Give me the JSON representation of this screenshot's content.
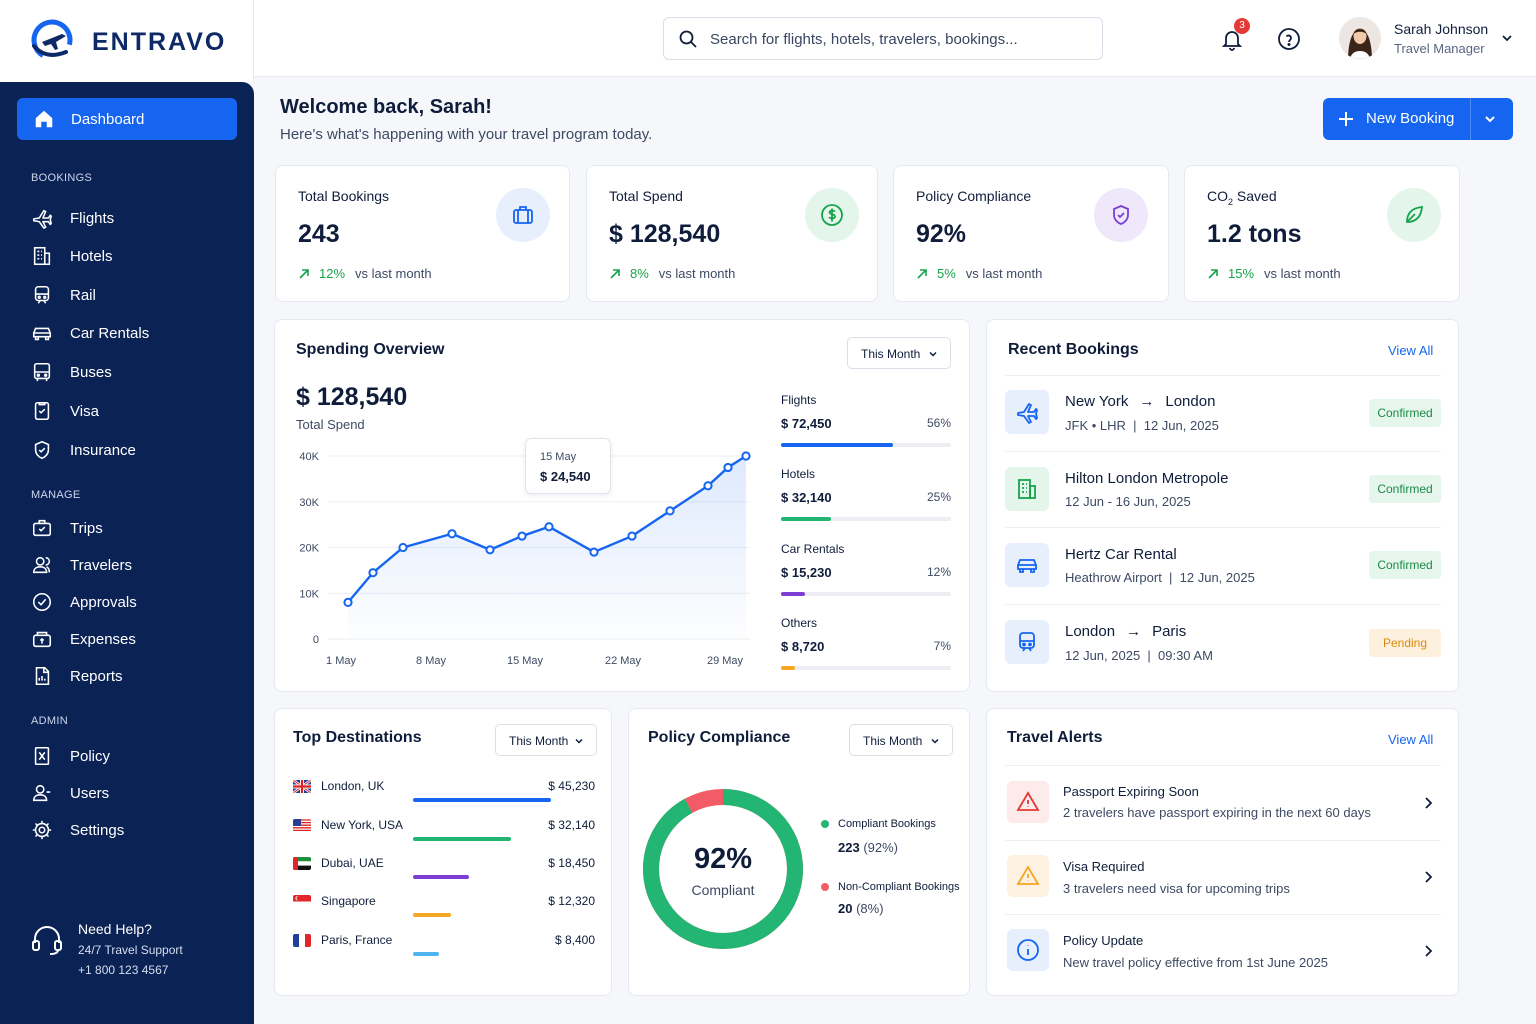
{
  "brand": {
    "name": "ENTRAVO"
  },
  "colors": {
    "primary": "#1565f0",
    "sidebar": "#0b2255",
    "success": "#17a34a",
    "warning": "#f5a623",
    "danger": "#e53935",
    "purple": "#7b3fd4"
  },
  "sidebar": {
    "active": {
      "label": "Dashboard",
      "icon": "home-icon"
    },
    "sections": [
      {
        "label": "BOOKINGS",
        "items": [
          {
            "label": "Flights",
            "icon": "plane-icon"
          },
          {
            "label": "Hotels",
            "icon": "building-icon"
          },
          {
            "label": "Rail",
            "icon": "train-icon"
          },
          {
            "label": "Car Rentals",
            "icon": "car-icon"
          },
          {
            "label": "Buses",
            "icon": "bus-icon"
          },
          {
            "label": "Visa",
            "icon": "visa-icon"
          },
          {
            "label": "Insurance",
            "icon": "shield-icon"
          }
        ]
      },
      {
        "label": "MANAGE",
        "items": [
          {
            "label": "Trips",
            "icon": "briefcase-icon"
          },
          {
            "label": "Travelers",
            "icon": "users-icon"
          },
          {
            "label": "Approvals",
            "icon": "check-circle-icon"
          },
          {
            "label": "Expenses",
            "icon": "wallet-icon"
          },
          {
            "label": "Reports",
            "icon": "report-icon"
          }
        ]
      },
      {
        "label": "ADMIN",
        "items": [
          {
            "label": "Policy",
            "icon": "policy-icon"
          },
          {
            "label": "Users",
            "icon": "user-icon"
          },
          {
            "label": "Settings",
            "icon": "gear-icon"
          }
        ]
      }
    ],
    "help": {
      "title": "Need Help?",
      "subtitle": "24/7 Travel Support",
      "phone": "+1 800 123 4567"
    }
  },
  "topbar": {
    "search_placeholder": "Search for flights, hotels, travelers, bookings...",
    "notifications": "3",
    "user": {
      "name": "Sarah Johnson",
      "role": "Travel Manager"
    }
  },
  "header": {
    "welcome": "Welcome back, Sarah!",
    "subtitle": "Here's what's happening with your travel program today.",
    "new_booking": "New Booking"
  },
  "stats": [
    {
      "label": "Total Bookings",
      "value": "243",
      "change": "12%",
      "vs": "vs last month",
      "icon": "suitcase-icon"
    },
    {
      "label": "Total Spend",
      "value": "$ 128,540",
      "change": "8%",
      "vs": "vs last month",
      "icon": "dollar-icon"
    },
    {
      "label": "Policy Compliance",
      "value": "92%",
      "change": "5%",
      "vs": "vs last month",
      "icon": "shield-check-icon"
    },
    {
      "label_main": "CO",
      "label_sub": "2",
      "label_rest": " Saved",
      "value": "1.2 tons",
      "change": "15%",
      "vs": "vs last month",
      "icon": "leaf-icon"
    }
  ],
  "spending": {
    "title": "Spending Overview",
    "period": "This Month",
    "total": "$ 128,540",
    "total_label": "Total Spend",
    "tooltip": {
      "date": "15 May",
      "value": "$ 24,540"
    },
    "breakdown": [
      {
        "label": "Flights",
        "value": "$ 72,450",
        "pct": "56%",
        "fraction": 0.56,
        "color": "#1565f0"
      },
      {
        "label": "Hotels",
        "value": "$ 32,140",
        "pct": "25%",
        "fraction": 0.25,
        "color": "#22b573"
      },
      {
        "label": "Car Rentals",
        "value": "$ 15,230",
        "pct": "12%",
        "fraction": 0.12,
        "color": "#7b3fd4"
      },
      {
        "label": "Others",
        "value": "$ 8,720",
        "pct": "7%",
        "fraction": 0.07,
        "color": "#f5a623"
      }
    ]
  },
  "chart_data": {
    "type": "line",
    "x": [
      "1 May",
      "2 May",
      "4 May",
      "8 May",
      "11 May",
      "13 May",
      "15 May",
      "17 May",
      "20 May",
      "23 May",
      "25 May",
      "28 May",
      "30 May"
    ],
    "series": [
      {
        "values": [
          8000,
          14500,
          20000,
          23000,
          19500,
          22500,
          24540,
          19000,
          22500,
          28000,
          33500,
          37500,
          40000
        ]
      }
    ],
    "xticks": [
      "1 May",
      "8 May",
      "15 May",
      "22 May",
      "29 May"
    ],
    "yticks": [
      "0",
      "10K",
      "20K",
      "30K",
      "40K"
    ],
    "ylim": [
      0,
      40000
    ],
    "grid": true
  },
  "recent": {
    "title": "Recent Bookings",
    "view_all": "View All",
    "items": [
      {
        "from": "New York",
        "to": "London",
        "arrow": "→",
        "sub": "JFK • LHR  |  12 Jun, 2025",
        "status": "Confirmed",
        "icon": "plane-icon"
      },
      {
        "title": "Hilton London Metropole",
        "sub": "12 Jun - 16 Jun, 2025",
        "status": "Confirmed",
        "icon": "building-icon"
      },
      {
        "title": "Hertz Car Rental",
        "sub": "Heathrow Airport  |  12 Jun, 2025",
        "status": "Confirmed",
        "icon": "car-icon"
      },
      {
        "from": "London",
        "to": "Paris",
        "arrow": "→",
        "sub": "12 Jun, 2025  |  09:30 AM",
        "status": "Pending",
        "icon": "train-icon"
      }
    ]
  },
  "destinations": {
    "title": "Top Destinations",
    "period": "This Month",
    "items": [
      {
        "name": "London, UK",
        "value": "$ 45,230",
        "amount": 45230,
        "color": "#1565f0",
        "flag": "uk-flag-icon"
      },
      {
        "name": "New York, USA",
        "value": "$ 32,140",
        "amount": 32140,
        "color": "#22b573",
        "flag": "us-flag-icon"
      },
      {
        "name": "Dubai, UAE",
        "value": "$ 18,450",
        "amount": 18450,
        "color": "#7b3fd4",
        "flag": "uae-flag-icon"
      },
      {
        "name": "Singapore",
        "value": "$ 12,320",
        "amount": 12320,
        "color": "#f5a623",
        "flag": "sg-flag-icon"
      },
      {
        "name": "Paris, France",
        "value": "$ 8,400",
        "amount": 8400,
        "color": "#4fb3f0",
        "flag": "fr-flag-icon"
      }
    ]
  },
  "compliance": {
    "title": "Policy Compliance",
    "period": "This Month",
    "percent": "92%",
    "caption": "Compliant",
    "fraction": 0.92,
    "legend": [
      {
        "label": "Compliant Bookings",
        "count": "223",
        "pct": "(92%)",
        "color": "#22b573"
      },
      {
        "label": "Non-Compliant Bookings",
        "count": "20",
        "pct": "(8%)",
        "color": "#f25c66"
      }
    ]
  },
  "alerts": {
    "title": "Travel Alerts",
    "view_all": "View All",
    "items": [
      {
        "title": "Passport Expiring Soon",
        "sub": "2 travelers have passport expiring in the next 60 days",
        "icon": "warning-icon"
      },
      {
        "title": "Visa Required",
        "sub": "3 travelers need visa for upcoming trips",
        "icon": "warning-icon"
      },
      {
        "title": "Policy Update",
        "sub": "New travel policy effective from 1st June 2025",
        "icon": "info-icon"
      }
    ]
  }
}
